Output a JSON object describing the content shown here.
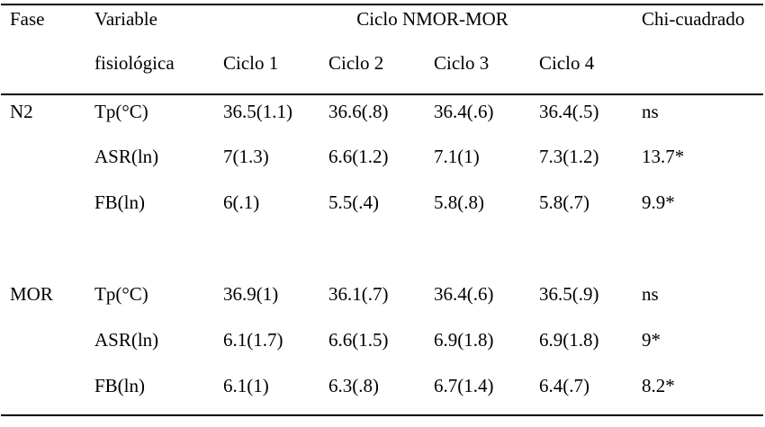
{
  "table": {
    "header": {
      "fase": "Fase",
      "variable_line1": "Variable",
      "variable_line2": "fisiológica",
      "group_title": "Ciclo NMOR-MOR",
      "cycles": [
        "Ciclo 1",
        "Ciclo 2",
        "Ciclo 3",
        "Ciclo 4"
      ],
      "chi": "Chi-cuadrado"
    },
    "sections": [
      {
        "fase": "N2",
        "rows": [
          {
            "variable": "Tp(°C)",
            "values": [
              "36.5(1.1)",
              "36.6(.8)",
              "36.4(.6)",
              "36.4(.5)"
            ],
            "chi": "ns"
          },
          {
            "variable": "ASR(ln)",
            "values": [
              "7(1.3)",
              "6.6(1.2)",
              "7.1(1)",
              "7.3(1.2)"
            ],
            "chi": "13.7*"
          },
          {
            "variable": "FB(ln)",
            "values": [
              "6(.1)",
              "5.5(.4)",
              "5.8(.8)",
              "5.8(.7)"
            ],
            "chi": "9.9*"
          }
        ]
      },
      {
        "fase": "MOR",
        "rows": [
          {
            "variable": "Tp(°C)",
            "values": [
              "36.9(1)",
              "36.1(.7)",
              "36.4(.6)",
              "36.5(.9)"
            ],
            "chi": "ns"
          },
          {
            "variable": "ASR(ln)",
            "values": [
              "6.1(1.7)",
              "6.6(1.5)",
              "6.9(1.8)",
              "6.9(1.8)"
            ],
            "chi": "9*"
          },
          {
            "variable": "FB(ln)",
            "values": [
              "6.1(1)",
              "6.3(.8)",
              "6.7(1.4)",
              "6.4(.7)"
            ],
            "chi": "8.2*"
          }
        ]
      }
    ],
    "colors": {
      "text": "#000000",
      "background": "#ffffff",
      "rule": "#000000"
    }
  }
}
